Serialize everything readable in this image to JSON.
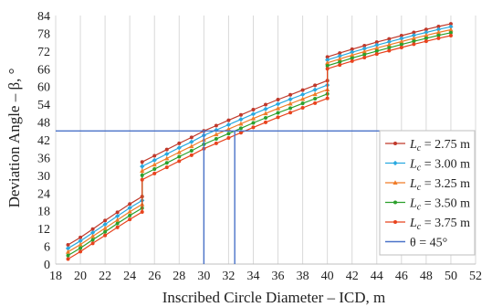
{
  "chart_data": {
    "type": "line",
    "xlabel": "Inscribed Circle Diameter – ICD, m",
    "ylabel": "Deviation Angle – β, °",
    "xlim": [
      18,
      52
    ],
    "ylim": [
      0,
      84
    ],
    "xticks": [
      18,
      20,
      22,
      24,
      26,
      28,
      30,
      32,
      34,
      36,
      38,
      40,
      42,
      44,
      46,
      48,
      50,
      52
    ],
    "yticks": [
      0,
      6,
      12,
      18,
      24,
      30,
      36,
      42,
      48,
      54,
      60,
      66,
      72,
      78,
      84
    ],
    "grid": {
      "vertical": true,
      "horizontal": false
    },
    "legend_position": "lower-right",
    "x": [
      19,
      20,
      21,
      22,
      23,
      24,
      25,
      25,
      26,
      27,
      28,
      29,
      30,
      31,
      32,
      33,
      34,
      35,
      36,
      37,
      38,
      39,
      40,
      40,
      41,
      42,
      43,
      44,
      45,
      46,
      47,
      48,
      49,
      50
    ],
    "series": [
      {
        "name": "L_c = 2.75 m",
        "label_main": "L",
        "label_sub": "c",
        "label_rest": " = 2.75 m",
        "color": "#c0392b",
        "marker": "circle",
        "values": [
          6.5,
          9,
          11.8,
          14.7,
          17.5,
          20.3,
          22.8,
          34.5,
          36.6,
          38.7,
          40.8,
          42.8,
          45,
          46.8,
          48.6,
          50.4,
          52.2,
          53.9,
          55.6,
          57.2,
          58.8,
          60.4,
          62,
          70,
          71.3,
          72.6,
          73.8,
          75,
          76.1,
          77.2,
          78.3,
          79.3,
          80.3,
          81.2
        ]
      },
      {
        "name": "L_c = 3.00 m",
        "label_main": "L",
        "label_sub": "c",
        "label_rest": " = 3.00 m",
        "color": "#29a9e0",
        "marker": "diamond",
        "values": [
          5.3,
          7.8,
          10.6,
          13.4,
          16.2,
          19,
          21.5,
          33,
          35.1,
          37.2,
          39.3,
          41.3,
          43.5,
          45.3,
          47.1,
          48.9,
          50.7,
          52.4,
          54.1,
          55.7,
          57.3,
          58.9,
          60.5,
          69,
          70.3,
          71.6,
          72.8,
          74,
          75.1,
          76.2,
          77.3,
          78.3,
          79.3,
          80.2
        ]
      },
      {
        "name": "L_c = 3.25 m",
        "label_main": "L",
        "label_sub": "c",
        "label_rest": " = 3.25 m",
        "color": "#f07c28",
        "marker": "triangle",
        "values": [
          4.1,
          6.6,
          9.4,
          12.1,
          14.9,
          17.7,
          20.2,
          31.5,
          33.6,
          35.7,
          37.8,
          39.8,
          42,
          43.8,
          45.6,
          47.4,
          49.2,
          50.9,
          52.6,
          54.2,
          55.8,
          57.4,
          59,
          68,
          69.3,
          70.6,
          71.8,
          73,
          74.1,
          75.2,
          76.3,
          77.3,
          78.3,
          79.2
        ]
      },
      {
        "name": "L_c = 3.50 m",
        "label_main": "L",
        "label_sub": "c",
        "label_rest": " = 3.50 m",
        "color": "#2ca02c",
        "marker": "circle",
        "values": [
          2.9,
          5.4,
          8.2,
          10.9,
          13.7,
          16.4,
          18.9,
          30,
          32.1,
          34.2,
          36.3,
          38.3,
          40.5,
          42.3,
          44.1,
          45.9,
          47.7,
          49.4,
          51.1,
          52.7,
          54.3,
          55.9,
          57.5,
          67,
          68.3,
          69.6,
          70.8,
          72,
          73.1,
          74.2,
          75.3,
          76.3,
          77.3,
          78.2
        ]
      },
      {
        "name": "L_c = 3.75 m",
        "label_main": "L",
        "label_sub": "c",
        "label_rest": " = 3.75 m",
        "color": "#e8431d",
        "marker": "circle",
        "values": [
          1.7,
          4.2,
          7,
          9.7,
          12.4,
          15.1,
          17.6,
          28.5,
          30.6,
          32.7,
          34.8,
          36.8,
          39,
          40.8,
          42.6,
          44.4,
          46.2,
          47.9,
          49.6,
          51.2,
          52.8,
          54.4,
          56,
          66,
          67.3,
          68.6,
          69.8,
          71,
          72.1,
          73.2,
          74.3,
          75.3,
          76.3,
          77.2
        ]
      }
    ],
    "reference": {
      "name": "θ = 45°",
      "label": "θ = 45°",
      "color": "#4a72c8",
      "y": 45,
      "x_drops": [
        30,
        32.5
      ]
    }
  }
}
